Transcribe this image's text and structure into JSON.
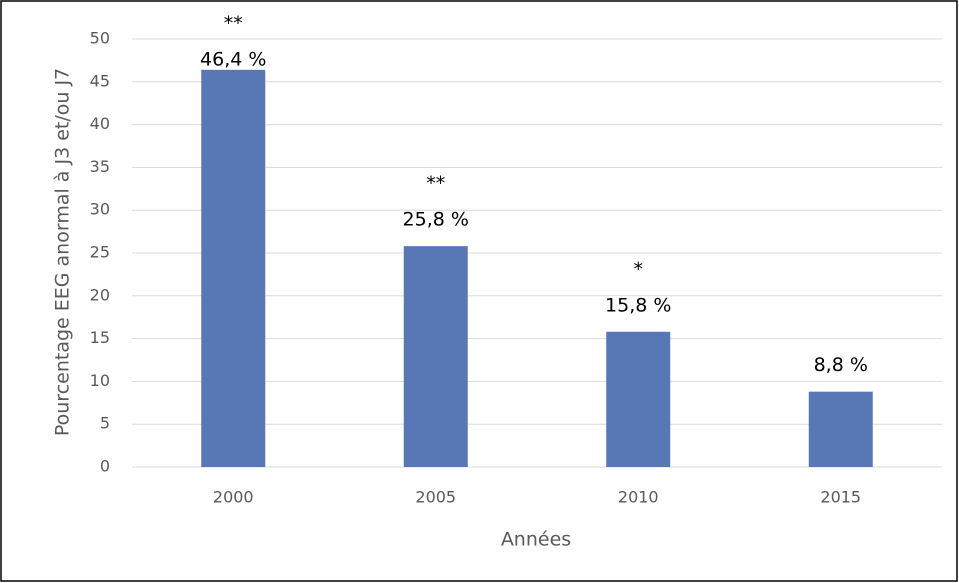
{
  "chart_data": {
    "type": "bar",
    "categories": [
      "2000",
      "2005",
      "2010",
      "2015"
    ],
    "values": [
      46.4,
      25.8,
      15.8,
      8.8
    ],
    "value_labels": [
      "46,4 %",
      "25,8 %",
      "15,8 %",
      "8,8 %"
    ],
    "annotations": [
      "**",
      "**",
      "*",
      null
    ],
    "color": "#5877b5",
    "xlabel": "Années",
    "ylabel": "Pourcentage EEG anormal à J3 et/ou J7",
    "ylim": [
      0,
      50
    ],
    "yticks": [
      0,
      5,
      10,
      15,
      20,
      25,
      30,
      35,
      40,
      45,
      50
    ],
    "grid": true
  }
}
